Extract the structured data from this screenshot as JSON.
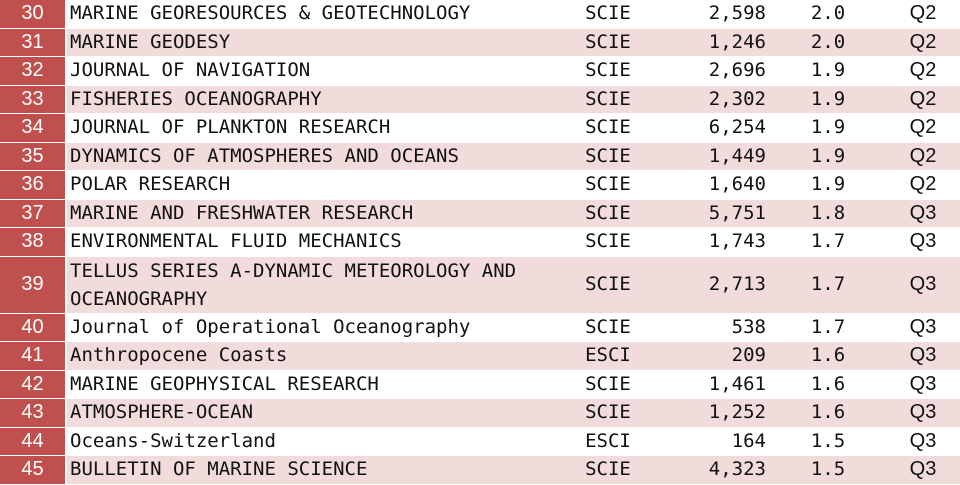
{
  "rows": [
    {
      "rank": "30",
      "journal": "MARINE GEORESOURCES & GEOTECHNOLOGY",
      "index": "SCIE",
      "citations": "2,598",
      "jif": "2.0",
      "quartile": "Q2"
    },
    {
      "rank": "31",
      "journal": "MARINE GEODESY",
      "index": "SCIE",
      "citations": "1,246",
      "jif": "2.0",
      "quartile": "Q2"
    },
    {
      "rank": "32",
      "journal": "JOURNAL OF NAVIGATION",
      "index": "SCIE",
      "citations": "2,696",
      "jif": "1.9",
      "quartile": "Q2"
    },
    {
      "rank": "33",
      "journal": "FISHERIES OCEANOGRAPHY",
      "index": "SCIE",
      "citations": "2,302",
      "jif": "1.9",
      "quartile": "Q2"
    },
    {
      "rank": "34",
      "journal": "JOURNAL OF PLANKTON RESEARCH",
      "index": "SCIE",
      "citations": "6,254",
      "jif": "1.9",
      "quartile": "Q2"
    },
    {
      "rank": "35",
      "journal": "DYNAMICS OF ATMOSPHERES AND OCEANS",
      "index": "SCIE",
      "citations": "1,449",
      "jif": "1.9",
      "quartile": "Q2"
    },
    {
      "rank": "36",
      "journal": "POLAR RESEARCH",
      "index": "SCIE",
      "citations": "1,640",
      "jif": "1.9",
      "quartile": "Q2"
    },
    {
      "rank": "37",
      "journal": "MARINE AND FRESHWATER RESEARCH",
      "index": "SCIE",
      "citations": "5,751",
      "jif": "1.8",
      "quartile": "Q3"
    },
    {
      "rank": "38",
      "journal": "ENVIRONMENTAL FLUID MECHANICS",
      "index": "SCIE",
      "citations": "1,743",
      "jif": "1.7",
      "quartile": "Q3"
    },
    {
      "rank": "39",
      "journal": "TELLUS SERIES A-DYNAMIC METEOROLOGY AND OCEANOGRAPHY",
      "index": "SCIE",
      "citations": "2,713",
      "jif": "1.7",
      "quartile": "Q3"
    },
    {
      "rank": "40",
      "journal": "Journal of Operational Oceanography",
      "index": "SCIE",
      "citations": "538",
      "jif": "1.7",
      "quartile": "Q3"
    },
    {
      "rank": "41",
      "journal": "Anthropocene Coasts",
      "index": "ESCI",
      "citations": "209",
      "jif": "1.6",
      "quartile": "Q3"
    },
    {
      "rank": "42",
      "journal": "MARINE GEOPHYSICAL RESEARCH",
      "index": "SCIE",
      "citations": "1,461",
      "jif": "1.6",
      "quartile": "Q3"
    },
    {
      "rank": "43",
      "journal": "ATMOSPHERE-OCEAN",
      "index": "SCIE",
      "citations": "1,252",
      "jif": "1.6",
      "quartile": "Q3"
    },
    {
      "rank": "44",
      "journal": "Oceans-Switzerland",
      "index": "ESCI",
      "citations": "164",
      "jif": "1.5",
      "quartile": "Q3"
    },
    {
      "rank": "45",
      "journal": "BULLETIN OF MARINE SCIENCE",
      "index": "SCIE",
      "citations": "4,323",
      "jif": "1.5",
      "quartile": "Q3"
    }
  ]
}
